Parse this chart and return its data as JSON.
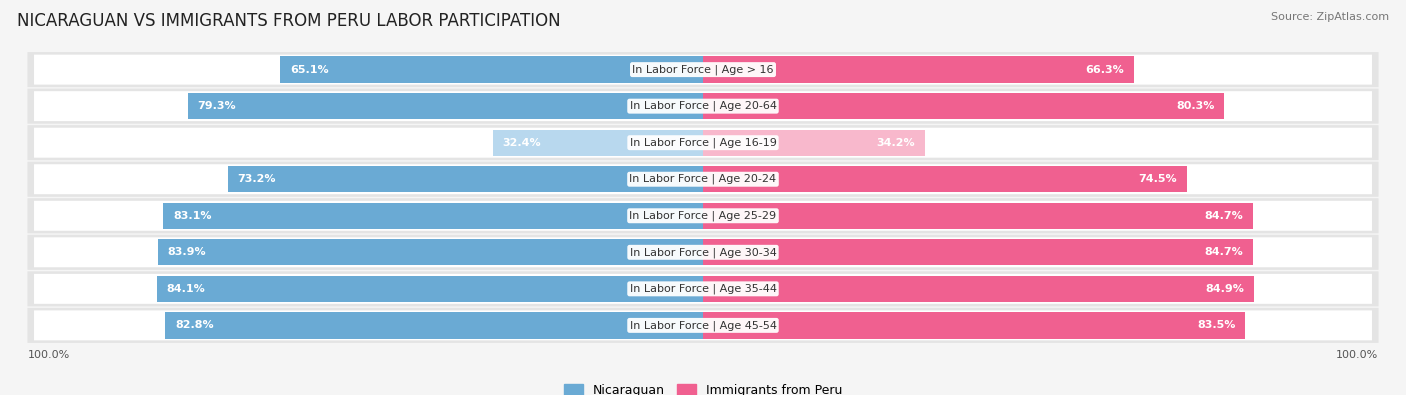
{
  "title": "NICARAGUAN VS IMMIGRANTS FROM PERU LABOR PARTICIPATION",
  "source": "Source: ZipAtlas.com",
  "categories": [
    "In Labor Force | Age > 16",
    "In Labor Force | Age 20-64",
    "In Labor Force | Age 16-19",
    "In Labor Force | Age 20-24",
    "In Labor Force | Age 25-29",
    "In Labor Force | Age 30-34",
    "In Labor Force | Age 35-44",
    "In Labor Force | Age 45-54"
  ],
  "nicaraguan_values": [
    65.1,
    79.3,
    32.4,
    73.2,
    83.1,
    83.9,
    84.1,
    82.8
  ],
  "peru_values": [
    66.3,
    80.3,
    34.2,
    74.5,
    84.7,
    84.7,
    84.9,
    83.5
  ],
  "nicaraguan_color_dark": "#6aaad4",
  "nicaraguan_color_light": "#b8d8ee",
  "peru_color_dark": "#f06090",
  "peru_color_light": "#f8b8cc",
  "bar_bg_color": "#e8e8e8",
  "row_light_bg": "#f0f0f0",
  "row_dark_bg": "#e0e0e0",
  "background_color": "#f5f5f5",
  "max_value": 100.0,
  "title_fontsize": 12,
  "label_fontsize": 8,
  "value_fontsize": 8,
  "legend_fontsize": 9
}
